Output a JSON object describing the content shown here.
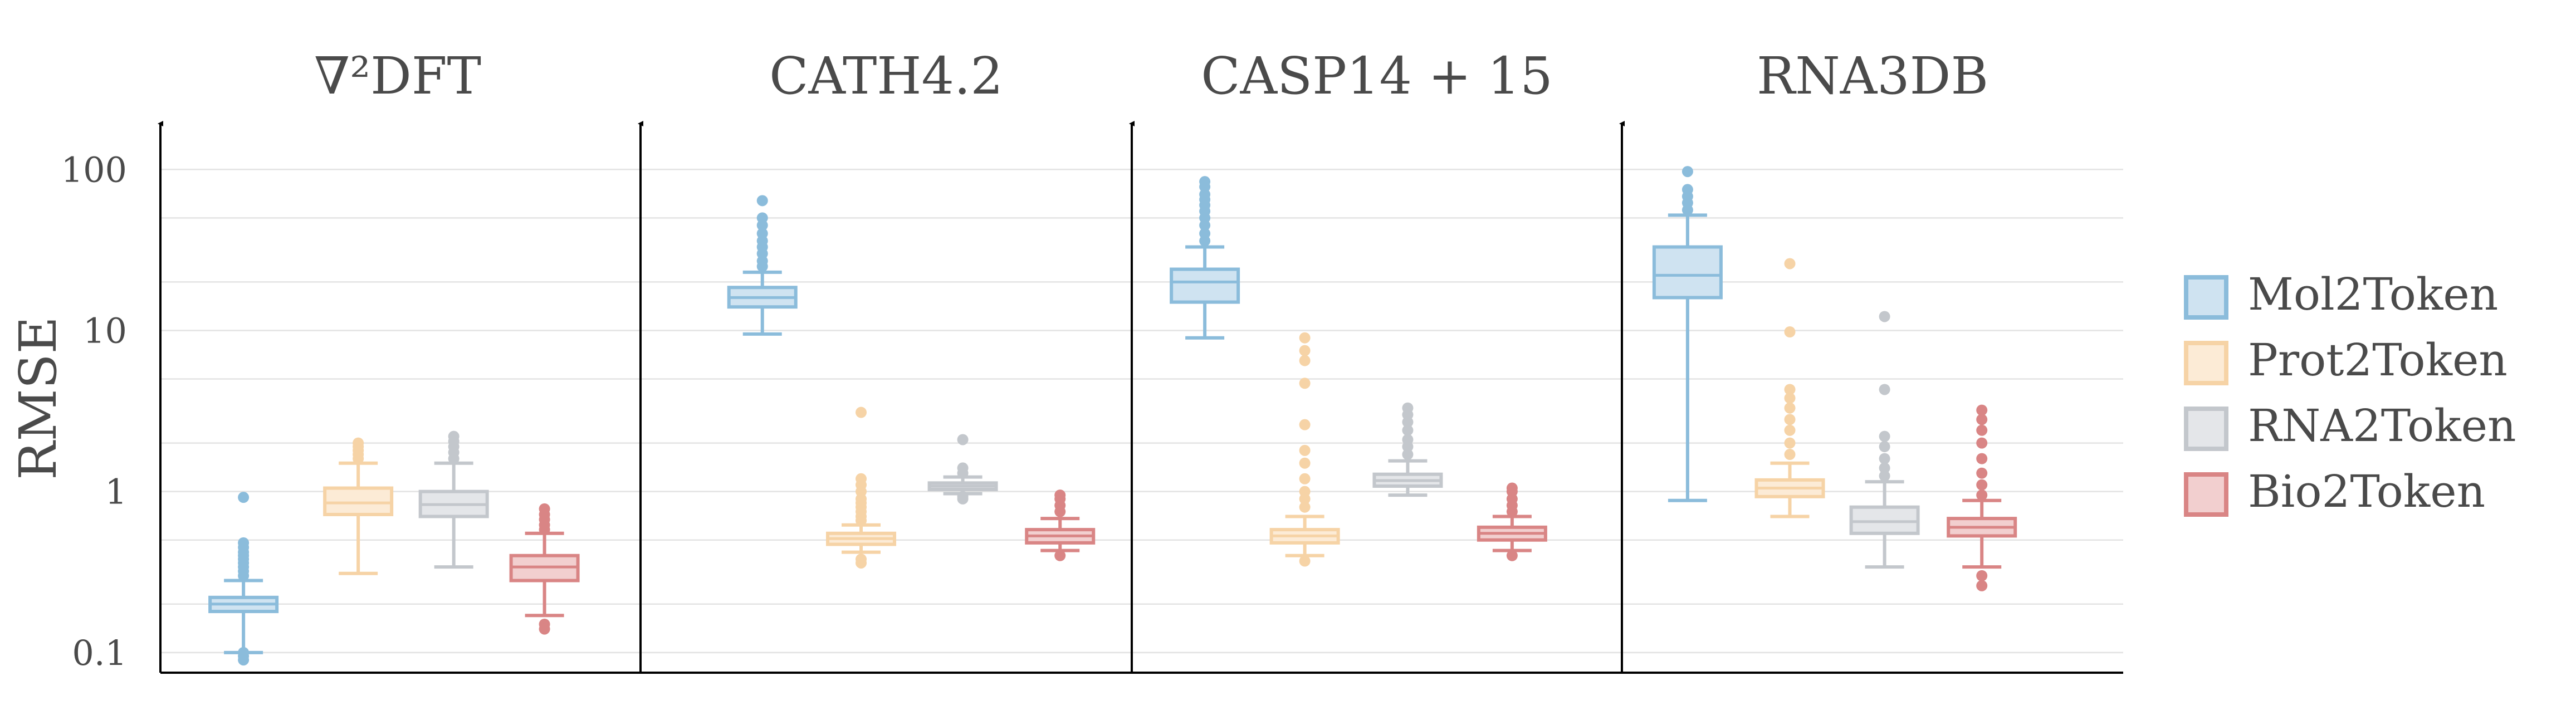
{
  "chart_data": {
    "type": "box",
    "ylabel": "RMSE",
    "yscale": "log",
    "ylim": [
      0.075,
      140
    ],
    "yticks": [
      {
        "value": 0.1,
        "label": "0.1"
      },
      {
        "value": 1,
        "label": "1"
      },
      {
        "value": 10,
        "label": "10"
      },
      {
        "value": 100,
        "label": "100"
      }
    ],
    "grid": true,
    "legend_position": "right",
    "series": [
      {
        "name": "Mol2Token",
        "stroke": "#8bbcdb",
        "fill": "#cfe3f1"
      },
      {
        "name": "Prot2Token",
        "stroke": "#f6d3a6",
        "fill": "#fcebd6"
      },
      {
        "name": "RNA2Token",
        "stroke": "#c3c7cc",
        "fill": "#e4e6e9"
      },
      {
        "name": "Bio2Token",
        "stroke": "#d98585",
        "fill": "#f2cfcf"
      }
    ],
    "panels": [
      {
        "title": "∇²DFT",
        "boxes": [
          {
            "series": "Mol2Token",
            "whislo": 0.1,
            "q1": 0.18,
            "med": 0.2,
            "q3": 0.22,
            "whishi": 0.28,
            "fliers_low": [
              0.09,
              0.095,
              0.1
            ],
            "fliers_high": [
              0.3,
              0.32,
              0.34,
              0.36,
              0.38,
              0.4,
              0.42,
              0.45,
              0.48,
              0.92
            ]
          },
          {
            "series": "Prot2Token",
            "whislo": 0.31,
            "q1": 0.72,
            "med": 0.85,
            "q3": 1.05,
            "whishi": 1.5,
            "fliers_low": [],
            "fliers_high": [
              1.6,
              1.7,
              1.8,
              1.9,
              2.0
            ]
          },
          {
            "series": "RNA2Token",
            "whislo": 0.34,
            "q1": 0.7,
            "med": 0.83,
            "q3": 1.0,
            "whishi": 1.5,
            "fliers_low": [],
            "fliers_high": [
              1.6,
              1.75,
              1.9,
              2.05,
              2.2
            ]
          },
          {
            "series": "Bio2Token",
            "whislo": 0.17,
            "q1": 0.28,
            "med": 0.34,
            "q3": 0.4,
            "whishi": 0.55,
            "fliers_low": [
              0.15,
              0.14
            ],
            "fliers_high": [
              0.58,
              0.62,
              0.67,
              0.72,
              0.78
            ]
          }
        ]
      },
      {
        "title": "CATH4.2",
        "boxes": [
          {
            "series": "Mol2Token",
            "whislo": 9.5,
            "q1": 14,
            "med": 16,
            "q3": 18.5,
            "whishi": 23,
            "fliers_low": [],
            "fliers_high": [
              25,
              27,
              30,
              33,
              36,
              40,
              45,
              50,
              64
            ]
          },
          {
            "series": "Prot2Token",
            "whislo": 0.42,
            "q1": 0.47,
            "med": 0.51,
            "q3": 0.55,
            "whishi": 0.62,
            "fliers_low": [
              0.38,
              0.36
            ],
            "fliers_high": [
              0.66,
              0.7,
              0.75,
              0.8,
              0.85,
              0.9,
              1.0,
              1.1,
              1.2,
              3.1
            ]
          },
          {
            "series": "RNA2Token",
            "whislo": 0.97,
            "q1": 1.03,
            "med": 1.08,
            "q3": 1.13,
            "whishi": 1.23,
            "fliers_low": [
              0.93,
              0.9
            ],
            "fliers_high": [
              1.3,
              1.4,
              2.1
            ]
          },
          {
            "series": "Bio2Token",
            "whislo": 0.43,
            "q1": 0.48,
            "med": 0.53,
            "q3": 0.58,
            "whishi": 0.68,
            "fliers_low": [
              0.4
            ],
            "fliers_high": [
              0.75,
              0.82,
              0.9,
              0.95
            ]
          }
        ]
      },
      {
        "title": "CASP14 + 15",
        "boxes": [
          {
            "series": "Mol2Token",
            "whislo": 9.0,
            "q1": 15,
            "med": 20,
            "q3": 24,
            "whishi": 33,
            "fliers_low": [],
            "fliers_high": [
              36,
              40,
              45,
              50,
              55,
              60,
              65,
              70,
              78,
              84
            ]
          },
          {
            "series": "Prot2Token",
            "whislo": 0.4,
            "q1": 0.48,
            "med": 0.53,
            "q3": 0.58,
            "whishi": 0.7,
            "fliers_low": [
              0.37
            ],
            "fliers_high": [
              0.8,
              0.9,
              1.0,
              1.2,
              1.5,
              1.8,
              2.6,
              4.7,
              6.5,
              7.5,
              9.0
            ]
          },
          {
            "series": "RNA2Token",
            "whislo": 0.95,
            "q1": 1.08,
            "med": 1.17,
            "q3": 1.28,
            "whishi": 1.55,
            "fliers_low": [],
            "fliers_high": [
              1.7,
              1.9,
              2.1,
              2.4,
              2.7,
              3.0,
              3.3
            ]
          },
          {
            "series": "Bio2Token",
            "whislo": 0.43,
            "q1": 0.5,
            "med": 0.55,
            "q3": 0.6,
            "whishi": 0.7,
            "fliers_low": [
              0.4
            ],
            "fliers_high": [
              0.75,
              0.82,
              0.9,
              1.0,
              1.05
            ]
          }
        ]
      },
      {
        "title": "RNA3DB",
        "boxes": [
          {
            "series": "Mol2Token",
            "whislo": 0.88,
            "q1": 16,
            "med": 22,
            "q3": 33,
            "whishi": 52,
            "fliers_low": [],
            "fliers_high": [
              56,
              62,
              68,
              75,
              97
            ]
          },
          {
            "series": "Prot2Token",
            "whislo": 0.7,
            "q1": 0.93,
            "med": 1.05,
            "q3": 1.18,
            "whishi": 1.5,
            "fliers_low": [],
            "fliers_high": [
              1.7,
              2.0,
              2.4,
              2.8,
              3.3,
              3.8,
              4.3,
              9.8,
              26
            ]
          },
          {
            "series": "RNA2Token",
            "whislo": 0.34,
            "q1": 0.55,
            "med": 0.65,
            "q3": 0.8,
            "whishi": 1.15,
            "fliers_low": [],
            "fliers_high": [
              1.25,
              1.4,
              1.6,
              1.9,
              2.2,
              4.3,
              12.2
            ]
          },
          {
            "series": "Bio2Token",
            "whislo": 0.34,
            "q1": 0.53,
            "med": 0.6,
            "q3": 0.68,
            "whishi": 0.88,
            "fliers_low": [
              0.3,
              0.26
            ],
            "fliers_high": [
              0.95,
              1.1,
              1.3,
              1.6,
              2.0,
              2.4,
              2.8,
              3.2
            ]
          }
        ]
      }
    ]
  }
}
